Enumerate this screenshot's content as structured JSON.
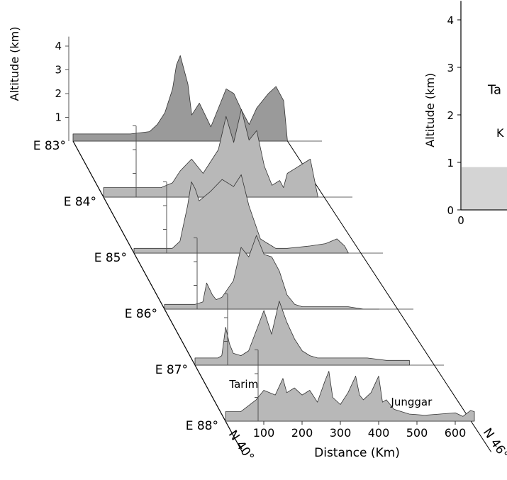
{
  "chart_data": [
    {
      "type": "area",
      "ylabel": "Altitude (km)",
      "xlabel": "Distance (Km)",
      "y_ticks": [
        "1",
        "2",
        "3",
        "4"
      ],
      "x_ticks": [
        "100",
        "200",
        "300",
        "400",
        "500",
        "600"
      ],
      "ylim": [
        0,
        4.5
      ],
      "xlim": [
        0,
        650
      ],
      "front_edge_labels": [
        "N 40°",
        "N 46°"
      ],
      "region_labels": [
        "Tarim",
        "Junggar"
      ],
      "series": [
        {
          "name": "E 83°",
          "x": [
            0,
            80,
            150,
            200,
            220,
            240,
            260,
            270,
            280,
            290,
            300,
            310,
            330,
            360,
            380,
            400,
            420,
            440,
            460,
            480,
            510,
            530,
            550,
            560
          ],
          "y": [
            0.3,
            0.3,
            0.3,
            0.4,
            0.7,
            1.2,
            2.2,
            3.2,
            3.6,
            3.0,
            2.4,
            1.1,
            1.6,
            0.6,
            1.4,
            2.2,
            2.0,
            1.3,
            0.7,
            1.4,
            2.0,
            2.3,
            1.7,
            0.0
          ]
        },
        {
          "name": "E 84°",
          "x": [
            0,
            100,
            150,
            180,
            200,
            230,
            260,
            300,
            320,
            340,
            360,
            380,
            400,
            420,
            440,
            460,
            470,
            480,
            500,
            520,
            540,
            560
          ],
          "y": [
            0.4,
            0.4,
            0.4,
            0.6,
            1.1,
            1.6,
            1.0,
            2.0,
            3.4,
            2.3,
            3.7,
            2.4,
            2.8,
            1.3,
            0.5,
            0.7,
            0.4,
            1.0,
            1.2,
            1.4,
            1.6,
            0.0
          ]
        },
        {
          "name": "E 85°",
          "x": [
            0,
            100,
            120,
            140,
            150,
            160,
            170,
            200,
            230,
            260,
            280,
            300,
            330,
            340,
            350,
            360,
            370,
            400,
            460,
            500,
            530,
            550,
            560
          ],
          "y": [
            0.2,
            0.2,
            0.5,
            2.0,
            3.0,
            2.7,
            2.2,
            2.6,
            3.1,
            2.8,
            3.3,
            2.0,
            0.6,
            0.5,
            0.4,
            0.3,
            0.2,
            0.2,
            0.3,
            0.4,
            0.6,
            0.3,
            0.0
          ]
        },
        {
          "name": "E 86°",
          "x": [
            0,
            80,
            100,
            110,
            125,
            135,
            150,
            180,
            200,
            220,
            240,
            260,
            280,
            300,
            320,
            340,
            360,
            380,
            400,
            440,
            480,
            520,
            560
          ],
          "y": [
            0.2,
            0.2,
            0.3,
            1.1,
            0.6,
            0.4,
            0.5,
            1.2,
            2.6,
            2.2,
            3.1,
            2.3,
            2.2,
            1.6,
            0.6,
            0.2,
            0.1,
            0.1,
            0.1,
            0.1,
            0.1,
            0.0,
            0.0
          ]
        },
        {
          "name": "E 87°",
          "x": [
            0,
            60,
            70,
            80,
            90,
            100,
            120,
            140,
            180,
            200,
            220,
            240,
            260,
            280,
            300,
            320,
            340,
            360,
            400,
            450,
            500,
            560
          ],
          "y": [
            0.3,
            0.3,
            0.4,
            1.6,
            0.9,
            0.5,
            0.4,
            0.6,
            2.3,
            1.3,
            2.7,
            1.8,
            1.1,
            0.6,
            0.4,
            0.3,
            0.3,
            0.3,
            0.3,
            0.3,
            0.2,
            0.2
          ]
        },
        {
          "name": "E 88°",
          "x": [
            0,
            40,
            80,
            100,
            130,
            150,
            160,
            180,
            200,
            220,
            240,
            260,
            270,
            280,
            300,
            320,
            340,
            350,
            360,
            380,
            400,
            410,
            420,
            440,
            480,
            520,
            560,
            600,
            620,
            640,
            650
          ],
          "y": [
            0.4,
            0.4,
            0.9,
            1.3,
            1.1,
            1.8,
            1.2,
            1.4,
            1.1,
            1.3,
            0.8,
            1.7,
            2.1,
            1.0,
            0.7,
            1.2,
            1.9,
            1.1,
            0.9,
            1.2,
            1.9,
            0.8,
            0.9,
            0.5,
            0.3,
            0.25,
            0.3,
            0.35,
            0.2,
            0.45,
            0.4
          ]
        }
      ]
    },
    {
      "type": "area",
      "ylabel": "Altitude (km)",
      "y_ticks": [
        "0",
        "1",
        "2",
        "3",
        "4"
      ],
      "x_ticks": [
        "0"
      ],
      "ylim": [
        0,
        4.4
      ],
      "text_labels": [
        "Ta",
        "K"
      ],
      "series": [
        {
          "x": [
            0,
            100
          ],
          "y": [
            0.9,
            0.9
          ]
        }
      ]
    }
  ]
}
